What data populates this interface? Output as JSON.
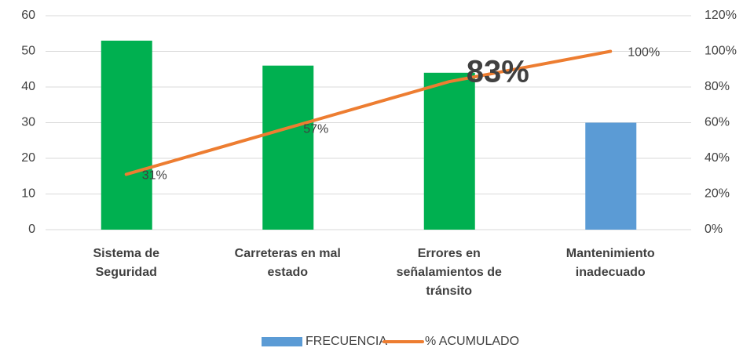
{
  "chart_data": {
    "type": "pareto",
    "categories": [
      "Sistema de Seguridad",
      "Carreteras en mal estado",
      "Errores en señalamientos de tránsito",
      "Mantenimiento inadecuado"
    ],
    "series": [
      {
        "name": "FRECUENCIA",
        "color": "#5b9bd5",
        "colors": [
          "#00b050",
          "#00b050",
          "#00b050",
          "#5b9bd5"
        ],
        "values": [
          53,
          46,
          44,
          30
        ]
      },
      {
        "name": "% ACUMULADO",
        "color": "#ed7d31",
        "axis": "y2",
        "values": [
          31,
          57,
          83,
          100
        ],
        "value_labels": [
          "31%",
          "57%",
          "83%",
          "100%"
        ]
      }
    ],
    "ylim": [
      0,
      60
    ],
    "yticks": [
      0,
      10,
      20,
      30,
      40,
      50,
      60
    ],
    "y2lim": [
      0,
      120
    ],
    "y2ticks": [
      {
        "value": 0,
        "label": "0%"
      },
      {
        "value": 20,
        "label": "20%"
      },
      {
        "value": 40,
        "label": "40%"
      },
      {
        "value": 60,
        "label": "60%"
      },
      {
        "value": 80,
        "label": "80%"
      },
      {
        "value": 100,
        "label": "100%"
      },
      {
        "value": 120,
        "label": "120%"
      }
    ],
    "grid": true,
    "legend": "bottom"
  }
}
